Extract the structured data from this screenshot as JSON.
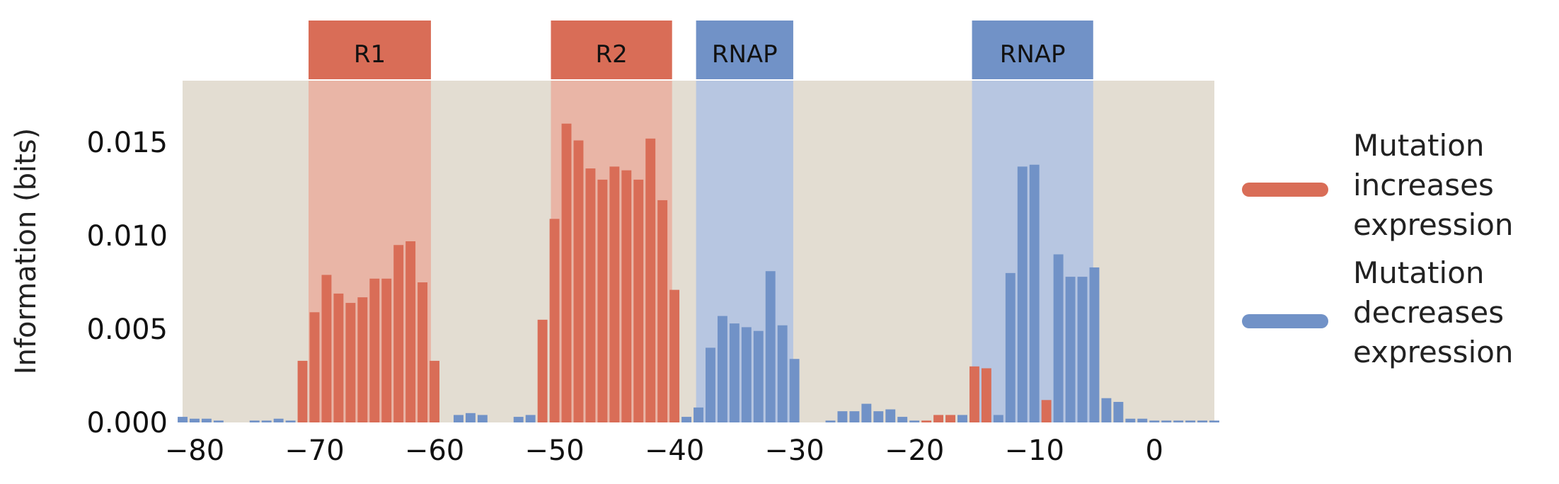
{
  "colors": {
    "increase": "#d96d57",
    "decrease": "#7192c7",
    "background": "#e3ddd2",
    "increase_shade": "#e9b5a6",
    "decrease_shade": "#b7c6e1"
  },
  "legend": [
    {
      "label": "Mutation\nincreases\nexpression",
      "color_key": "increase"
    },
    {
      "label": "Mutation\ndecreases\nexpression",
      "color_key": "decrease"
    }
  ],
  "chart_data": {
    "type": "bar",
    "title": "",
    "xlabel": "",
    "ylabel": "Information (bits)",
    "xlim": [
      -81,
      5
    ],
    "ylim": [
      0,
      0.0183
    ],
    "xticks": [
      -80,
      -70,
      -60,
      -50,
      -40,
      -30,
      -20,
      -10,
      0
    ],
    "xtick_labels": [
      "−80",
      "−70",
      "−60",
      "−50",
      "−40",
      "−30",
      "−20",
      "−10",
      "0"
    ],
    "yticks": [
      0.0,
      0.005,
      0.01,
      0.015
    ],
    "ytick_labels": [
      "0.000",
      "0.005",
      "0.010",
      "0.015"
    ],
    "grid": false,
    "legend_position": "right",
    "regions": [
      {
        "label": "R1",
        "start": -70.5,
        "end": -60.3,
        "color_key": "increase"
      },
      {
        "label": "R2",
        "start": -50.3,
        "end": -40.2,
        "color_key": "increase"
      },
      {
        "label": "RNAP",
        "start": -38.2,
        "end": -30.1,
        "color_key": "decrease"
      },
      {
        "label": "RNAP",
        "start": -15.2,
        "end": -5.1,
        "color_key": "decrease"
      }
    ],
    "series": [
      {
        "name": "Mutation increases expression",
        "color_key": "increase",
        "points": [
          [
            -71,
            0.0033
          ],
          [
            -70,
            0.0059
          ],
          [
            -69,
            0.0079
          ],
          [
            -68,
            0.0069
          ],
          [
            -67,
            0.0064
          ],
          [
            -66,
            0.0067
          ],
          [
            -65,
            0.0077
          ],
          [
            -64,
            0.0077
          ],
          [
            -63,
            0.0095
          ],
          [
            -62,
            0.0097
          ],
          [
            -61,
            0.0075
          ],
          [
            -60,
            0.0033
          ],
          [
            -51,
            0.0055
          ],
          [
            -50,
            0.0109
          ],
          [
            -49,
            0.016
          ],
          [
            -48,
            0.0151
          ],
          [
            -47,
            0.0136
          ],
          [
            -46,
            0.013
          ],
          [
            -45,
            0.0137
          ],
          [
            -44,
            0.0135
          ],
          [
            -43,
            0.013
          ],
          [
            -42,
            0.0152
          ],
          [
            -41,
            0.0119
          ],
          [
            -40,
            0.0071
          ],
          [
            -19,
            0.0001
          ],
          [
            -18,
            0.0004
          ],
          [
            -17,
            0.0004
          ],
          [
            -15,
            0.003
          ],
          [
            -14,
            0.0029
          ],
          [
            -9,
            0.0012
          ]
        ]
      },
      {
        "name": "Mutation decreases expression",
        "color_key": "decrease",
        "points": [
          [
            -81,
            0.0003
          ],
          [
            -80,
            0.0002
          ],
          [
            -79,
            0.0002
          ],
          [
            -78,
            0.0001
          ],
          [
            -77,
            0.0
          ],
          [
            -76,
            0.0
          ],
          [
            -75,
            0.0001
          ],
          [
            -74,
            0.0001
          ],
          [
            -73,
            0.0002
          ],
          [
            -72,
            0.0001
          ],
          [
            -59,
            0.0
          ],
          [
            -58,
            0.0004
          ],
          [
            -57,
            0.0005
          ],
          [
            -56,
            0.0004
          ],
          [
            -55,
            0.0
          ],
          [
            -54,
            0.0
          ],
          [
            -53,
            0.0003
          ],
          [
            -52,
            0.0004
          ],
          [
            -39,
            0.0003
          ],
          [
            -38,
            0.0008
          ],
          [
            -37,
            0.004
          ],
          [
            -36,
            0.0057
          ],
          [
            -35,
            0.0053
          ],
          [
            -34,
            0.0051
          ],
          [
            -33,
            0.0049
          ],
          [
            -32,
            0.0081
          ],
          [
            -31,
            0.0052
          ],
          [
            -30,
            0.0034
          ],
          [
            -27,
            0.0001
          ],
          [
            -26,
            0.0006
          ],
          [
            -25,
            0.0006
          ],
          [
            -24,
            0.001
          ],
          [
            -23,
            0.0006
          ],
          [
            -22,
            0.0007
          ],
          [
            -21,
            0.0003
          ],
          [
            -20,
            0.0001
          ],
          [
            -16,
            0.0004
          ],
          [
            -13,
            0.0004
          ],
          [
            -12,
            0.008
          ],
          [
            -11,
            0.0137
          ],
          [
            -10,
            0.0138
          ],
          [
            -8,
            0.009
          ],
          [
            -7,
            0.0078
          ],
          [
            -6,
            0.0078
          ],
          [
            -5,
            0.0083
          ],
          [
            -4,
            0.0013
          ],
          [
            -3,
            0.0011
          ],
          [
            -2,
            0.0002
          ],
          [
            -1,
            0.0002
          ],
          [
            0,
            0.0001
          ],
          [
            1,
            0.0001
          ],
          [
            2,
            0.0001
          ],
          [
            3,
            0.0001
          ],
          [
            4,
            0.0001
          ],
          [
            5,
            0.0001
          ]
        ]
      }
    ]
  }
}
